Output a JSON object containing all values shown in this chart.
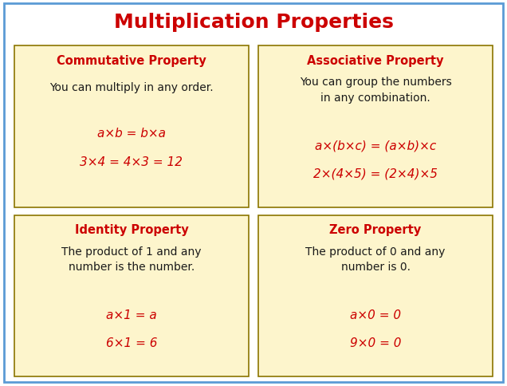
{
  "title": "Multiplication Properties",
  "title_color": "#cc0000",
  "title_fontsize": 18,
  "background_color": "#ffffff",
  "outer_border_color": "#5b9bd5",
  "box_bg_color": "#fdf5cc",
  "box_border_color": "#8b7500",
  "heading_color": "#cc0000",
  "body_color": "#1a1a1a",
  "formula_color": "#cc0000",
  "boxes": [
    {
      "heading": "Commutative Property",
      "body": "You can multiply in any order.",
      "formula1": "a×b = b×a",
      "formula2": "3×4 = 4×3 = 12",
      "body_lines": 1
    },
    {
      "heading": "Associative Property",
      "body": "You can group the numbers\nin any combination.",
      "formula1": "a×(b×c) = (a×b)×c",
      "formula2": "2×(4×5) = (2×4)×5",
      "body_lines": 2
    },
    {
      "heading": "Identity Property",
      "body": "The product of 1 and any\nnumber is the number.",
      "formula1": "a×1 = a",
      "formula2": "6×1 = 6",
      "body_lines": 2
    },
    {
      "heading": "Zero Property",
      "body": "The product of 0 and any\nnumber is 0.",
      "formula1": "a×0 = 0",
      "formula2": "9×0 = 0",
      "body_lines": 2
    }
  ]
}
